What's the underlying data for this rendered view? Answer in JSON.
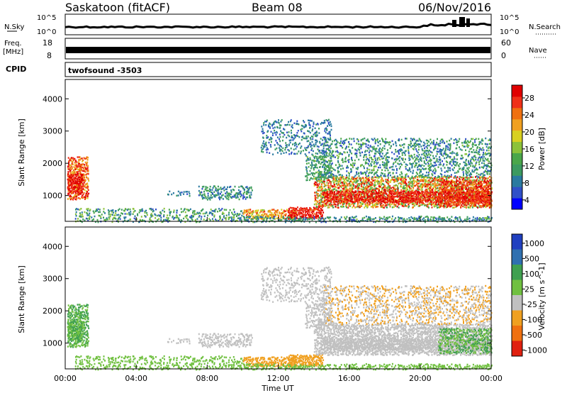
{
  "header": {
    "title": "Saskatoon (fitACF)",
    "beam": "Beam 08",
    "date": "06/Nov/2016"
  },
  "strips": {
    "nsky_label": "N.Sky",
    "nsky_ticks": [
      "10^5",
      "10^0"
    ],
    "nsearch_label": "N.Search",
    "freq_label": "Freq.",
    "freq_unit": "[MHz]",
    "freq_ticks": [
      "18",
      "8"
    ],
    "nave_label": "Nave",
    "nave_ticks": [
      "60",
      "0"
    ],
    "cpid_label": "CPID",
    "cpid_value": "twofsound -3503"
  },
  "chart_data": [
    {
      "type": "heatmap",
      "panel": "power",
      "ylabel": "Slant Range [km]",
      "yticks": [
        "4000",
        "3000",
        "2000",
        "1000"
      ],
      "ylim": [
        200,
        4600
      ],
      "colorbar_label": "Power [dB]",
      "colorbar_ticks": [
        "28",
        "24",
        "20",
        "16",
        "12",
        "8",
        "4"
      ],
      "colorbar_range": [
        0,
        30
      ],
      "colors": [
        "#0000ff",
        "#3050c8",
        "#2a7aa0",
        "#3c9a60",
        "#4aa64a",
        "#8cc23a",
        "#d8d020",
        "#f0a020",
        "#f07010",
        "#f03018",
        "#e00000"
      ]
    },
    {
      "type": "heatmap",
      "panel": "velocity",
      "ylabel": "Slant Range [km]",
      "yticks": [
        "4000",
        "3000",
        "2000",
        "1000"
      ],
      "ylim": [
        200,
        4600
      ],
      "colorbar_label": "Velocity [m s^-1]",
      "colorbar_ticks": [
        "1000",
        "500",
        "100",
        "25",
        "-25",
        "-100",
        "-500",
        "-1000"
      ],
      "colors": [
        "#2040c0",
        "#3070b0",
        "#40a050",
        "#70c040",
        "#c0c0c0",
        "#f0a020",
        "#f07010",
        "#e02010"
      ]
    }
  ],
  "x_axis": {
    "ticks": [
      "00:00",
      "04:00",
      "08:00",
      "12:00",
      "16:00",
      "20:00",
      "00:00"
    ],
    "label": "Time UT",
    "range_hours": [
      0,
      24
    ]
  }
}
